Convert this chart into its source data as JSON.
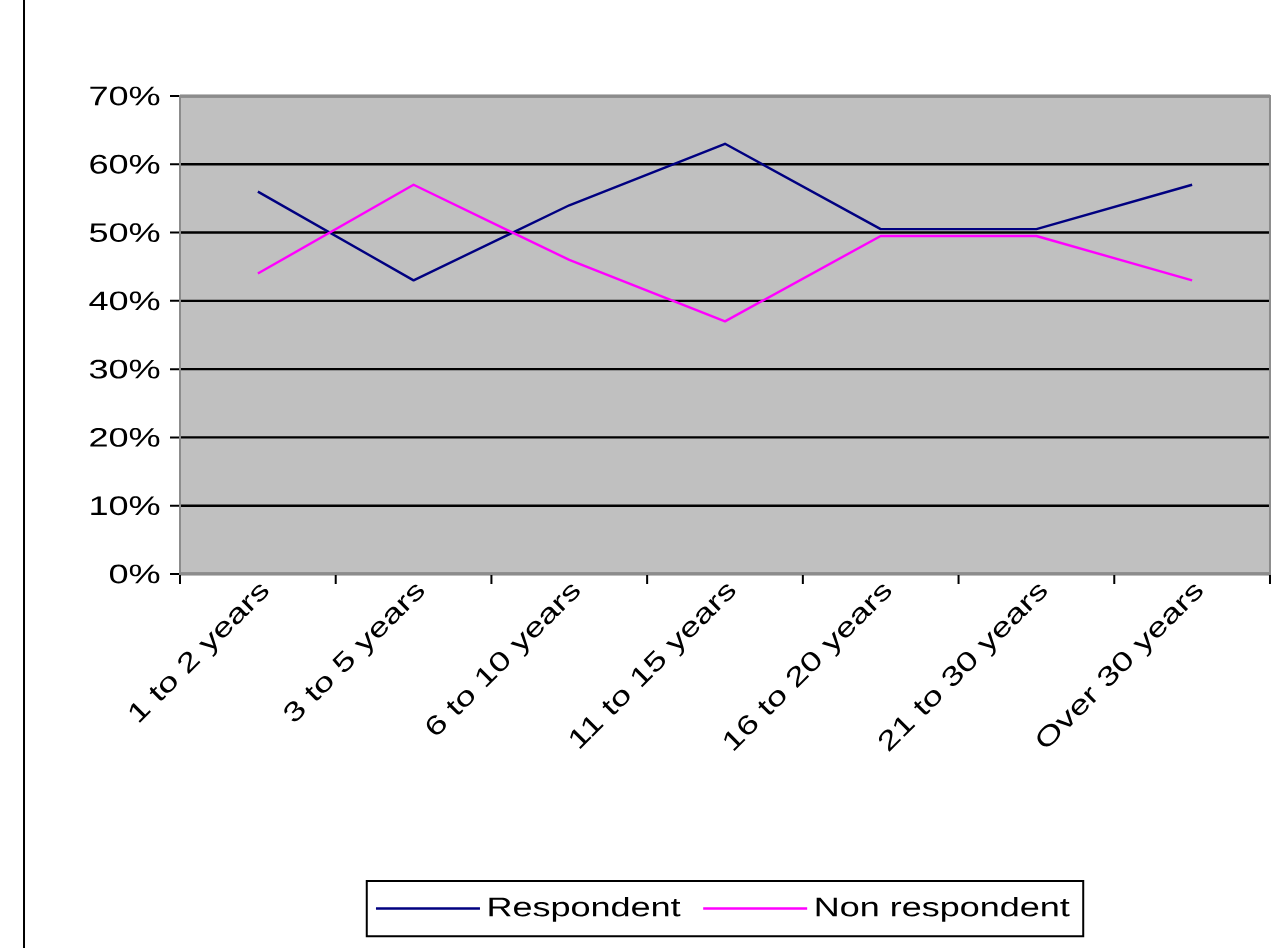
{
  "chart_data": {
    "type": "line",
    "categories": [
      "1 to 2 years",
      "3 to 5 years",
      "6 to 10 years",
      "11 to 15 years",
      "16 to 20 years",
      "21 to 30 years",
      "Over 30 years"
    ],
    "series": [
      {
        "name": "Respondent",
        "color": "#000080",
        "values": [
          56,
          43,
          54,
          63,
          50.5,
          50.5,
          57
        ]
      },
      {
        "name": "Non respondent",
        "color": "#ff00ff",
        "values": [
          44,
          57,
          46,
          37,
          49.5,
          49.5,
          43
        ]
      }
    ],
    "ylim": [
      0,
      70
    ],
    "yticks": [
      {
        "value": 0,
        "label": "0%"
      },
      {
        "value": 10,
        "label": "10%"
      },
      {
        "value": 20,
        "label": "20%"
      },
      {
        "value": 30,
        "label": "30%"
      },
      {
        "value": 40,
        "label": "40%"
      },
      {
        "value": 50,
        "label": "50%"
      },
      {
        "value": 60,
        "label": "60%"
      },
      {
        "value": 70,
        "label": "70%"
      }
    ],
    "grid": "y",
    "legend": "bottom"
  }
}
